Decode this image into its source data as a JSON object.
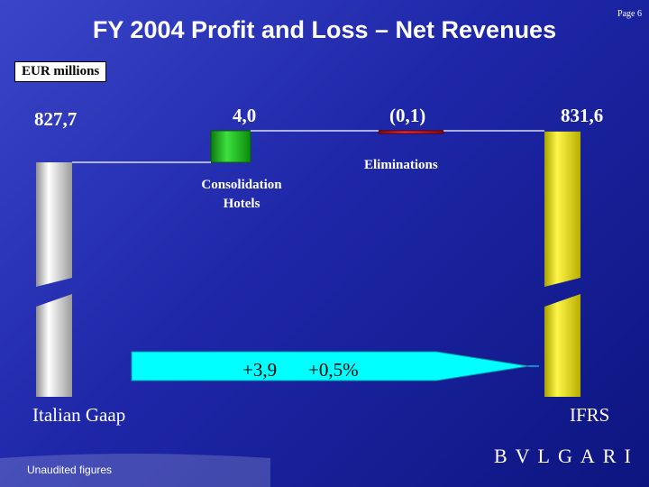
{
  "slide": {
    "title": "FY 2004 Profit and Loss – Net Revenues",
    "page": "Page 6",
    "unit": "EUR millions",
    "footer": "Unaudited figures",
    "brand": "BVLGARI"
  },
  "chart_data": {
    "type": "bar",
    "subtype": "waterfall",
    "unit": "EUR millions",
    "categories": [
      "Italian Gaap",
      "Consolidation Hotels",
      "Eliminations",
      "IFRS"
    ],
    "values": [
      827.7,
      4.0,
      -0.1,
      831.6
    ],
    "value_labels": [
      "827,7",
      "4,0",
      "(0,1)",
      "831,6"
    ],
    "bar_types": [
      "total",
      "delta",
      "delta",
      "total"
    ],
    "colors": [
      "#e6e6e6",
      "#1fb41f",
      "#cc1010",
      "#f2ea00"
    ],
    "axis_break": true,
    "ylim": [
      826,
      833
    ],
    "arrow": {
      "change_label": "+3,9",
      "pct_label": "+0,5%",
      "color": "#00ffff"
    }
  }
}
